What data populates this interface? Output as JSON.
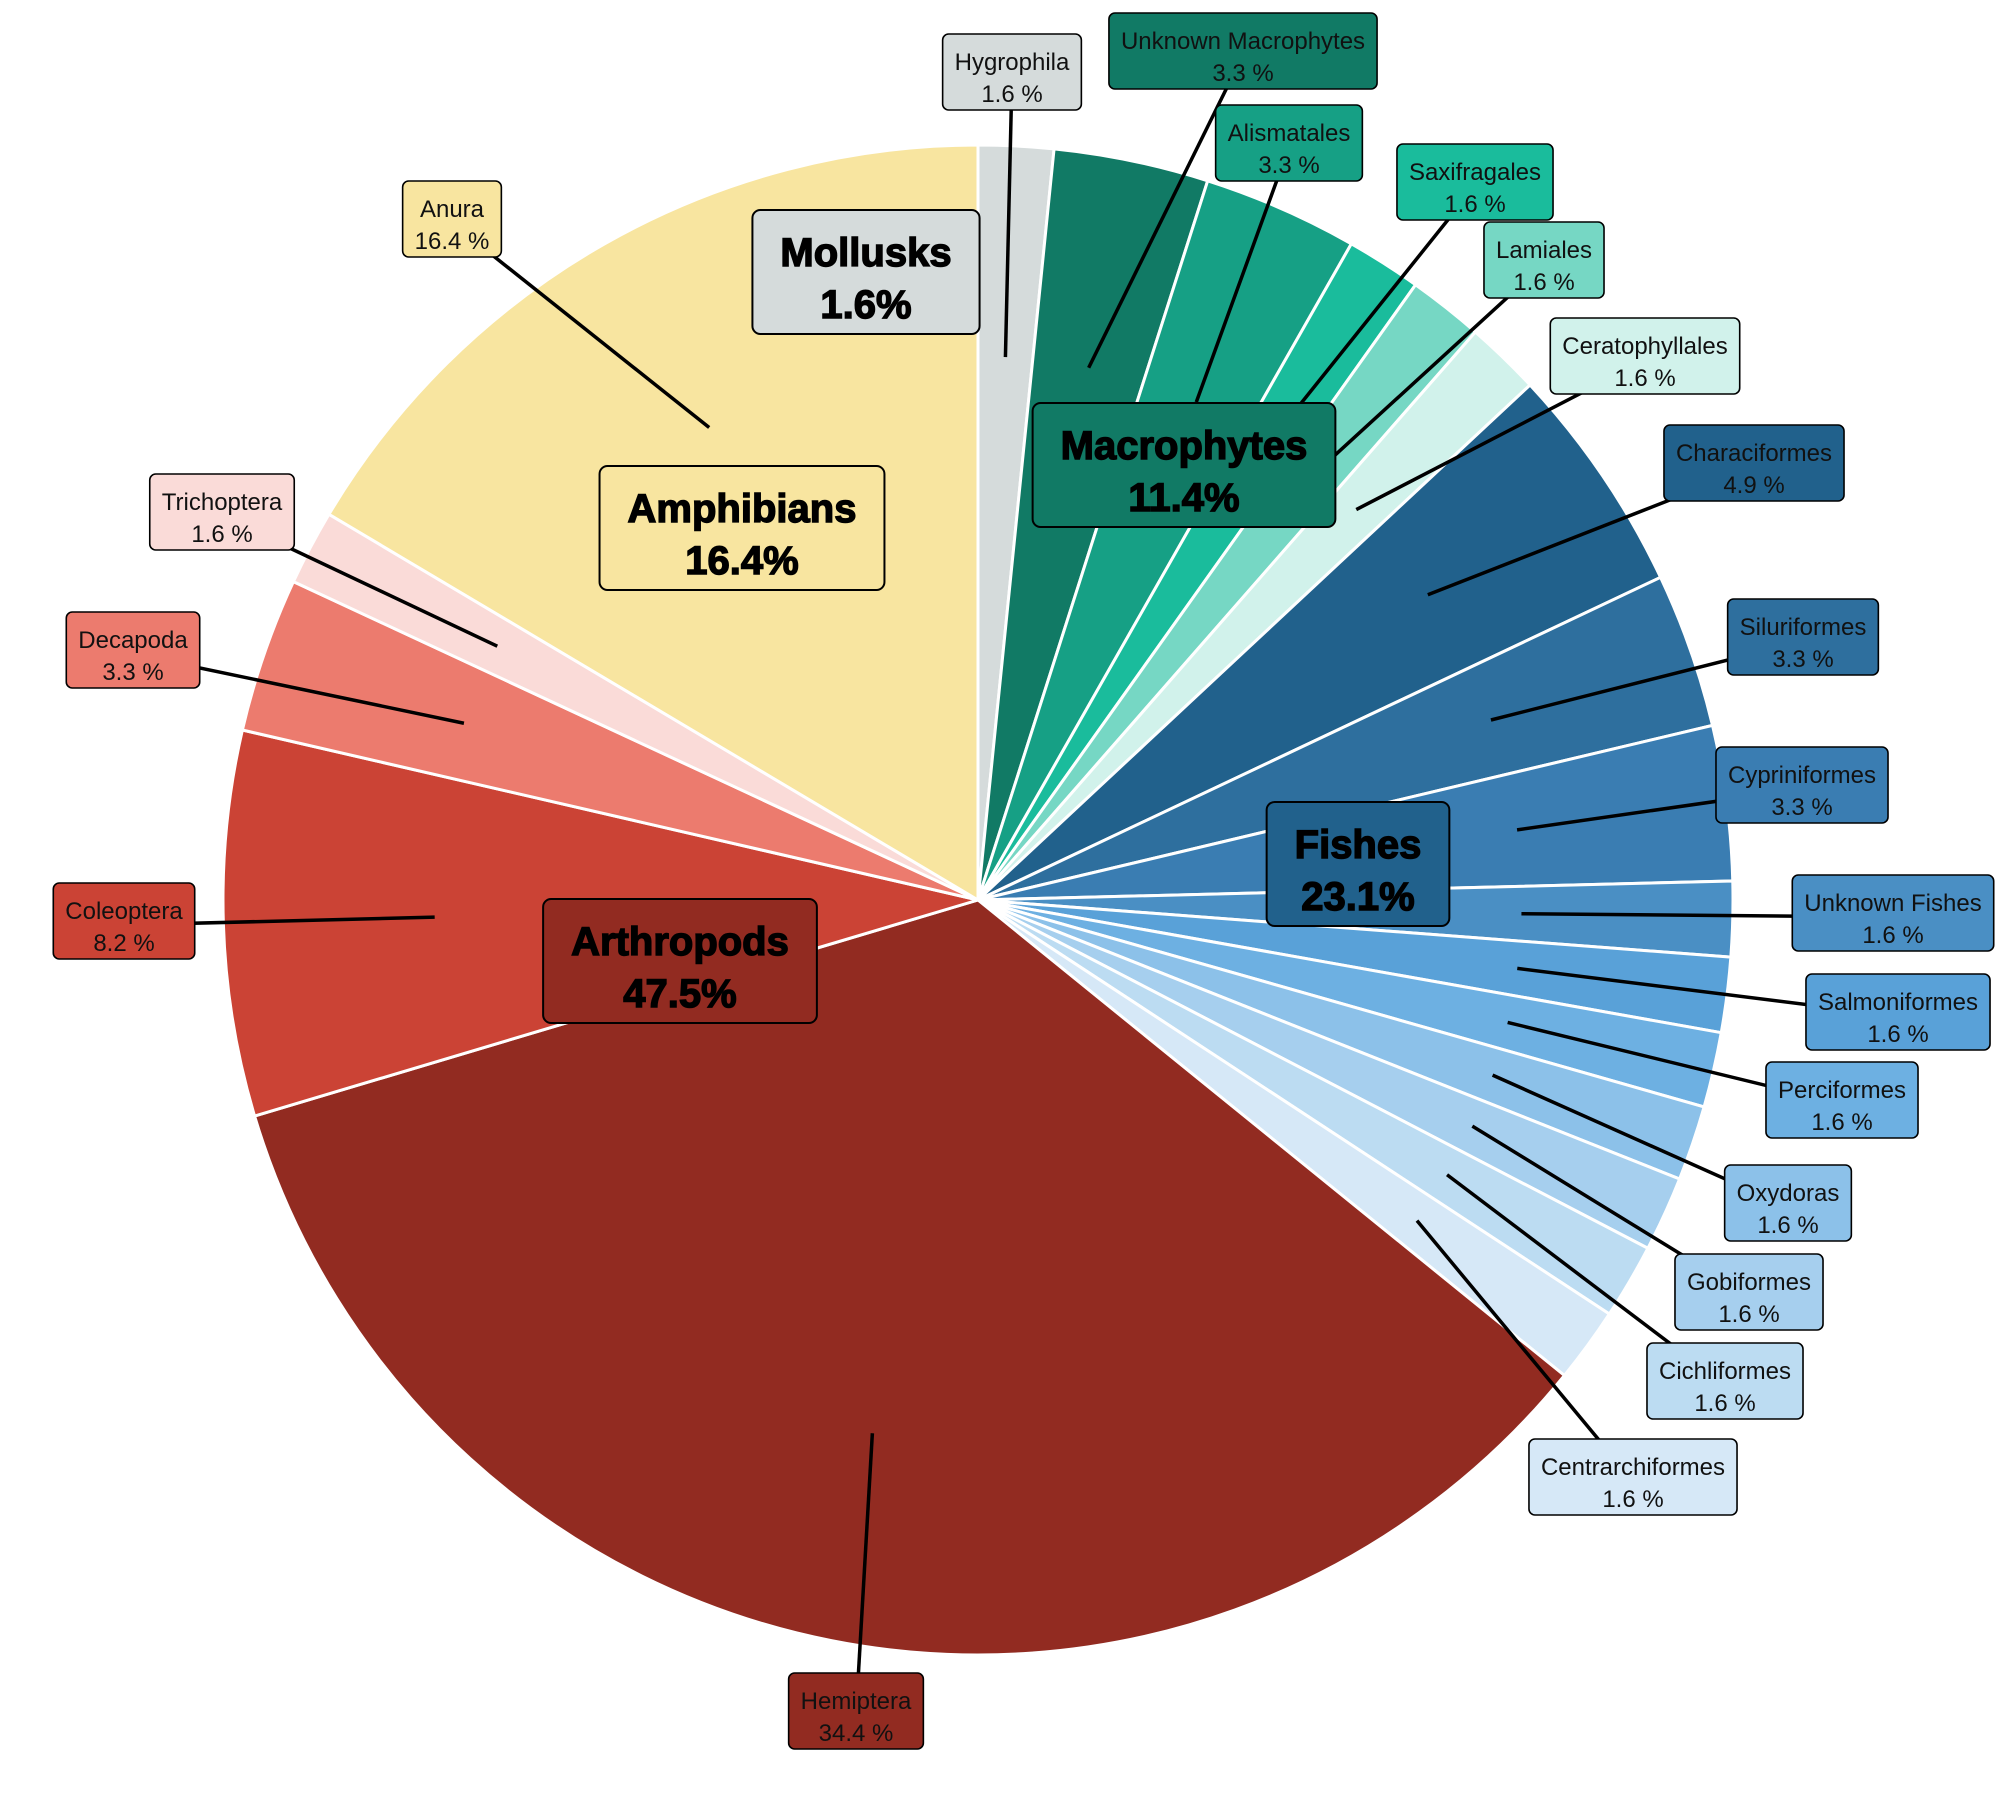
{
  "chart_data": {
    "type": "pie",
    "title": "",
    "series": [
      {
        "name": "Hygrophila",
        "value": 1.6,
        "label": "1.6 %",
        "group": "Mollusks",
        "color": "#d5dbdb"
      },
      {
        "name": "Unknown Macrophytes",
        "value": 3.3,
        "label": "3.3 %",
        "group": "Macrophytes",
        "color": "#117a65"
      },
      {
        "name": "Alismatales",
        "value": 3.3,
        "label": "3.3 %",
        "group": "Macrophytes",
        "color": "#16a085"
      },
      {
        "name": "Saxifragales",
        "value": 1.6,
        "label": "1.6 %",
        "group": "Macrophytes",
        "color": "#1abc9c"
      },
      {
        "name": "Lamiales",
        "value": 1.6,
        "label": "1.6 %",
        "group": "Macrophytes",
        "color": "#76d7c4"
      },
      {
        "name": "Ceratophyllales",
        "value": 1.6,
        "label": "1.6 %",
        "group": "Macrophytes",
        "color": "#d1f2eb"
      },
      {
        "name": "Characiformes",
        "value": 4.9,
        "label": "4.9 %",
        "group": "Fishes",
        "color": "#21618c"
      },
      {
        "name": "Siluriformes",
        "value": 3.3,
        "label": "3.3 %",
        "group": "Fishes",
        "color": "#2e6f9e"
      },
      {
        "name": "Cypriniformes",
        "value": 3.3,
        "label": "3.3 %",
        "group": "Fishes",
        "color": "#3a7db2"
      },
      {
        "name": "Unknown Fishes",
        "value": 1.6,
        "label": "1.6 %",
        "group": "Fishes",
        "color": "#4a8fc4"
      },
      {
        "name": "Salmoniformes",
        "value": 1.6,
        "label": "1.6 %",
        "group": "Fishes",
        "color": "#59a1d8"
      },
      {
        "name": "Perciformes",
        "value": 1.6,
        "label": "1.6 %",
        "group": "Fishes",
        "color": "#6db0e2"
      },
      {
        "name": "Oxydoras",
        "value": 1.6,
        "label": "1.6 %",
        "group": "Fishes",
        "color": "#8cc1e9"
      },
      {
        "name": "Gobiformes",
        "value": 1.6,
        "label": "1.6 %",
        "group": "Fishes",
        "color": "#a6cfee"
      },
      {
        "name": "Cichliformes",
        "value": 1.6,
        "label": "1.6 %",
        "group": "Fishes",
        "color": "#bcdcf2"
      },
      {
        "name": "Centrarchiformes",
        "value": 1.6,
        "label": "1.6 %",
        "group": "Fishes",
        "color": "#d6e8f7"
      },
      {
        "name": "Hemiptera",
        "value": 34.4,
        "label": "34.4 %",
        "group": "Arthropods",
        "color": "#922b21"
      },
      {
        "name": "Coleoptera",
        "value": 8.2,
        "label": "8.2 %",
        "group": "Arthropods",
        "color": "#cb4335"
      },
      {
        "name": "Decapoda",
        "value": 3.3,
        "label": "3.3 %",
        "group": "Arthropods",
        "color": "#ec7b6e"
      },
      {
        "name": "Trichoptera",
        "value": 1.6,
        "label": "1.6 %",
        "group": "Arthropods",
        "color": "#fadbd8"
      },
      {
        "name": "Anura",
        "value": 16.4,
        "label": "16.4 %",
        "group": "Amphibians",
        "color": "#f8e5a0"
      }
    ],
    "groups": [
      {
        "name": "Mollusks",
        "label": "1.6%",
        "color": "#d5dbdb"
      },
      {
        "name": "Macrophytes",
        "label": "11.4%",
        "color": "#117a65"
      },
      {
        "name": "Fishes",
        "label": "23.1%",
        "color": "#21618c"
      },
      {
        "name": "Arthropods",
        "label": "47.5%",
        "color": "#922b21"
      },
      {
        "name": "Amphibians",
        "label": "16.4%",
        "color": "#f8e5a0"
      }
    ],
    "start": "12 o'clock",
    "direction": "clockwise",
    "legend": "none"
  }
}
